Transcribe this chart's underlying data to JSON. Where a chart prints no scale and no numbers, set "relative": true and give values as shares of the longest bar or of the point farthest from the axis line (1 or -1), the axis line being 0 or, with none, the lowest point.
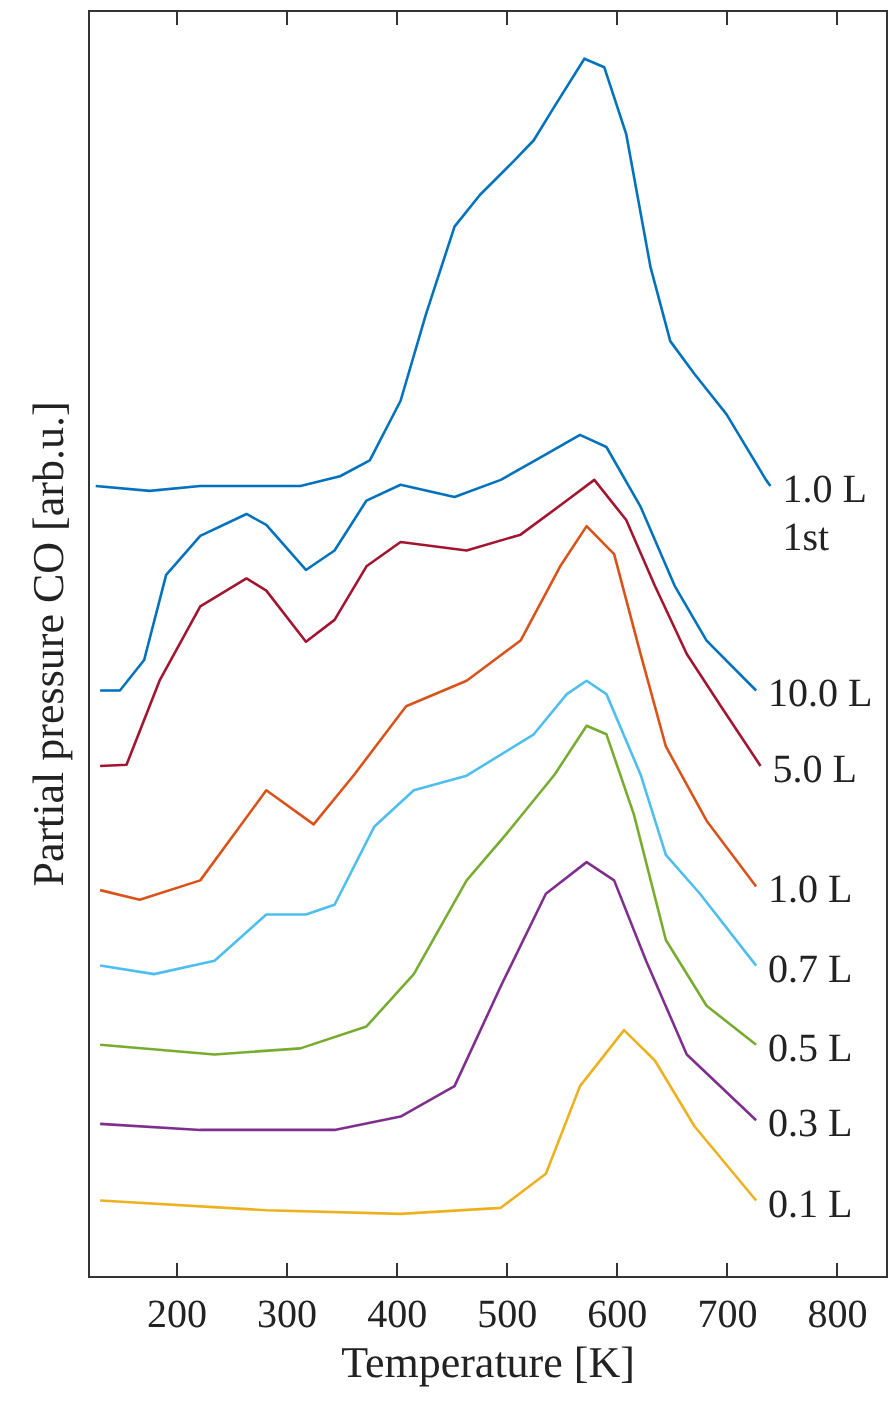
{
  "chart_data": {
    "type": "line",
    "relative": true,
    "xlabel": "Temperature [K]",
    "ylabel": "Partial pressure CO [arb.u.]",
    "xlim": [
      120,
      845
    ],
    "xticks": [
      200,
      300,
      400,
      500,
      600,
      700,
      800
    ],
    "grid": false,
    "series": [
      {
        "name": "1.0 L\n1st",
        "color": "#0072bd",
        "x": [
          127,
          176,
          222,
          313,
          349,
          376,
          404,
          427,
          453,
          476,
          507,
          525,
          544,
          571,
          589,
          609,
          631,
          649,
          671,
          700,
          736,
          740
        ],
        "values": [
          0.649,
          0.645,
          0.649,
          0.649,
          0.657,
          0.67,
          0.719,
          0.79,
          0.862,
          0.888,
          0.916,
          0.933,
          0.961,
          1.0,
          0.993,
          0.938,
          0.829,
          0.768,
          0.741,
          0.708,
          0.654,
          0.649
        ]
      },
      {
        "name": "10.0 L",
        "color": "#0072bd",
        "x": [
          131,
          149,
          171,
          191,
          222,
          264,
          282,
          318,
          344,
          373,
          404,
          453,
          495,
          536,
          567,
          591,
          622,
          653,
          682,
          727
        ],
        "values": [
          0.481,
          0.481,
          0.506,
          0.576,
          0.608,
          0.626,
          0.617,
          0.58,
          0.596,
          0.637,
          0.65,
          0.64,
          0.654,
          0.675,
          0.691,
          0.681,
          0.632,
          0.567,
          0.522,
          0.481
        ]
      },
      {
        "name": "5.0 L",
        "color": "#a2142f",
        "x": [
          131,
          155,
          185,
          222,
          264,
          282,
          318,
          344,
          373,
          404,
          464,
          513,
          555,
          580,
          609,
          635,
          664,
          695,
          731
        ],
        "values": [
          0.419,
          0.42,
          0.489,
          0.55,
          0.573,
          0.563,
          0.521,
          0.539,
          0.583,
          0.603,
          0.596,
          0.609,
          0.637,
          0.654,
          0.621,
          0.567,
          0.511,
          0.468,
          0.419
        ]
      },
      {
        "name": "1.0 L",
        "color": "#d95319",
        "x": [
          131,
          167,
          222,
          282,
          325,
          362,
          409,
          464,
          513,
          549,
          573,
          598,
          622,
          645,
          682,
          727
        ],
        "values": [
          0.317,
          0.309,
          0.325,
          0.399,
          0.371,
          0.412,
          0.468,
          0.489,
          0.522,
          0.583,
          0.616,
          0.593,
          0.511,
          0.435,
          0.374,
          0.32
        ]
      },
      {
        "name": "0.7 L",
        "color": "#4dbeee",
        "x": [
          131,
          180,
          235,
          282,
          318,
          344,
          380,
          416,
          464,
          525,
          555,
          573,
          591,
          622,
          645,
          676,
          727
        ],
        "values": [
          0.255,
          0.248,
          0.259,
          0.297,
          0.297,
          0.305,
          0.369,
          0.399,
          0.411,
          0.445,
          0.478,
          0.489,
          0.478,
          0.412,
          0.346,
          0.314,
          0.255
        ]
      },
      {
        "name": "0.5 L",
        "color": "#77ac30",
        "x": [
          131,
          235,
          313,
          373,
          416,
          464,
          500,
          544,
          573,
          591,
          616,
          645,
          682,
          727
        ],
        "values": [
          0.19,
          0.182,
          0.187,
          0.205,
          0.248,
          0.325,
          0.363,
          0.412,
          0.452,
          0.445,
          0.379,
          0.276,
          0.222,
          0.19
        ]
      },
      {
        "name": "0.3 L",
        "color": "#7e2f8e",
        "x": [
          131,
          222,
          344,
          404,
          453,
          495,
          536,
          573,
          598,
          627,
          664,
          727
        ],
        "values": [
          0.125,
          0.12,
          0.12,
          0.131,
          0.156,
          0.238,
          0.314,
          0.34,
          0.325,
          0.259,
          0.182,
          0.128
        ]
      },
      {
        "name": "0.1 L",
        "color": "#edb120",
        "x": [
          131,
          282,
          404,
          495,
          536,
          567,
          607,
          635,
          671,
          727
        ],
        "values": [
          0.062,
          0.054,
          0.051,
          0.056,
          0.084,
          0.156,
          0.202,
          0.177,
          0.123,
          0.062
        ]
      }
    ]
  }
}
